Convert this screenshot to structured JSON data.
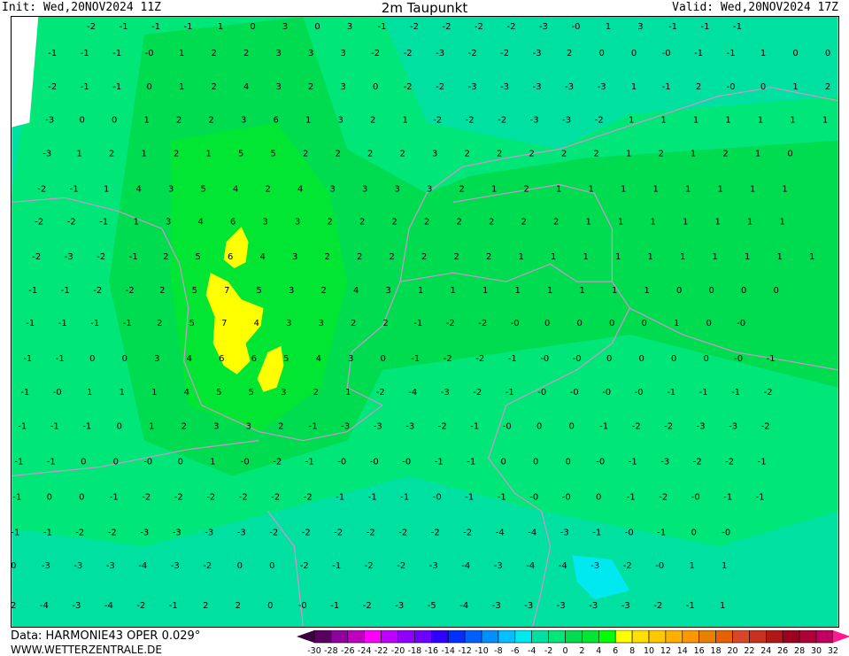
{
  "header": {
    "init": "Init: Wed,20NOV2024 11Z",
    "title": "2m Taupunkt",
    "valid": "Valid: Wed,20NOV2024 17Z"
  },
  "footer": {
    "data": "Data: HARMONIE43 OPER 0.029°",
    "site": "WWW.WETTERZENTRALE.DE"
  },
  "legend": {
    "labels": [
      "-30",
      "-28",
      "-26",
      "-24",
      "-22",
      "-20",
      "-18",
      "-16",
      "-14",
      "-12",
      "-10",
      "-8",
      "-6",
      "-4",
      "-2",
      "0",
      "2",
      "4",
      "6",
      "8",
      "10",
      "12",
      "14",
      "16",
      "18",
      "20",
      "22",
      "24",
      "26",
      "28",
      "30",
      "32"
    ],
    "low_color": "#3a0040",
    "high_color": "#ff1890",
    "colors": [
      "#5a0060",
      "#9000a0",
      "#c000c0",
      "#ff00ff",
      "#c000ff",
      "#9000ff",
      "#7000ff",
      "#3000ff",
      "#0030ff",
      "#0060ff",
      "#0090ff",
      "#00c0ff",
      "#00e8f0",
      "#00e0a0",
      "#00e678",
      "#00dc50",
      "#00e632",
      "#00ff00",
      "#ffff00",
      "#ffe000",
      "#ffc800",
      "#ffb000",
      "#ff9800",
      "#e88000",
      "#e86000",
      "#d84828",
      "#c83020",
      "#b01818",
      "#a00020",
      "#b00038",
      "#c00060"
    ]
  },
  "map": {
    "coast_color": "#c896c8",
    "rows": [
      [
        "-2",
        "-1",
        "-1",
        "-1",
        "1",
        "0",
        "3",
        "0",
        "3",
        "-1",
        "-2",
        "-2",
        "-2",
        "-2",
        "-3",
        "-0",
        "1",
        "3",
        "-1",
        "-1",
        "-1"
      ],
      [
        "-1",
        "-1",
        "-1",
        "-0",
        "1",
        "2",
        "2",
        "3",
        "3",
        "3",
        "-2",
        "-2",
        "-3",
        "-2",
        "-2",
        "-3",
        "2",
        "0",
        "0",
        "-0",
        "-1",
        "-1",
        "1",
        "0",
        "0"
      ],
      [
        "-2",
        "-1",
        "-1",
        "0",
        "1",
        "2",
        "4",
        "3",
        "2",
        "3",
        "0",
        "-2",
        "-2",
        "-3",
        "-3",
        "-3",
        "-3",
        "-3",
        "1",
        "-1",
        "2",
        "-0",
        "0",
        "1",
        "2"
      ],
      [
        "-3",
        "0",
        "0",
        "1",
        "2",
        "2",
        "3",
        "6",
        "1",
        "3",
        "2",
        "1",
        "-2",
        "-2",
        "-2",
        "-3",
        "-3",
        "-2",
        "1",
        "1",
        "1",
        "1",
        "1",
        "1",
        "1",
        "2"
      ],
      [
        "-3",
        "1",
        "2",
        "1",
        "2",
        "1",
        "5",
        "5",
        "2",
        "2",
        "2",
        "2",
        "3",
        "2",
        "2",
        "2",
        "2",
        "2",
        "1",
        "2",
        "1",
        "2",
        "1",
        "0"
      ],
      [
        "-2",
        "-1",
        "1",
        "4",
        "3",
        "5",
        "4",
        "2",
        "4",
        "3",
        "3",
        "3",
        "3",
        "2",
        "1",
        "2",
        "1",
        "1",
        "1",
        "1",
        "1",
        "1",
        "1",
        "1"
      ],
      [
        "-2",
        "-2",
        "-1",
        "1",
        "3",
        "4",
        "6",
        "3",
        "3",
        "2",
        "2",
        "2",
        "2",
        "2",
        "2",
        "2",
        "2",
        "1",
        "1",
        "1",
        "1",
        "1",
        "1",
        "1"
      ],
      [
        "-2",
        "-3",
        "-2",
        "-1",
        "2",
        "5",
        "6",
        "4",
        "3",
        "2",
        "2",
        "2",
        "2",
        "2",
        "2",
        "1",
        "1",
        "1",
        "1",
        "1",
        "1",
        "1",
        "1",
        "1",
        "1"
      ],
      [
        "-1",
        "-1",
        "-2",
        "-2",
        "2",
        "5",
        "7",
        "5",
        "3",
        "2",
        "4",
        "3",
        "1",
        "1",
        "1",
        "1",
        "1",
        "1",
        "1",
        "1",
        "0",
        "0",
        "0",
        "0"
      ],
      [
        "-1",
        "-1",
        "-1",
        "-1",
        "2",
        "5",
        "7",
        "4",
        "3",
        "3",
        "2",
        "2",
        "-1",
        "-2",
        "-2",
        "-0",
        "0",
        "0",
        "0",
        "0",
        "1",
        "0",
        "-0"
      ],
      [
        "-1",
        "-1",
        "0",
        "0",
        "3",
        "4",
        "6",
        "6",
        "5",
        "4",
        "3",
        "0",
        "-1",
        "-2",
        "-2",
        "-1",
        "-0",
        "-0",
        "0",
        "0",
        "0",
        "0",
        "-0",
        "-1"
      ],
      [
        "-1",
        "-0",
        "1",
        "1",
        "1",
        "4",
        "5",
        "5",
        "3",
        "2",
        "1",
        "-2",
        "-4",
        "-3",
        "-2",
        "-1",
        "-0",
        "-0",
        "-0",
        "-0",
        "-1",
        "-1",
        "-1",
        "-2"
      ],
      [
        "-1",
        "-1",
        "-1",
        "0",
        "1",
        "2",
        "3",
        "3",
        "2",
        "-1",
        "-3",
        "-3",
        "-3",
        "-2",
        "-1",
        "-0",
        "0",
        "0",
        "-1",
        "-2",
        "-2",
        "-3",
        "-3",
        "-2"
      ],
      [
        "-1",
        "-1",
        "0",
        "0",
        "-0",
        "0",
        "1",
        "-0",
        "-2",
        "-1",
        "-0",
        "-0",
        "-0",
        "-1",
        "-1",
        "0",
        "0",
        "0",
        "-0",
        "-1",
        "-3",
        "-2",
        "-2",
        "-1"
      ],
      [
        "-1",
        "0",
        "0",
        "-1",
        "-2",
        "-2",
        "-2",
        "-2",
        "-2",
        "-2",
        "-1",
        "-1",
        "-1",
        "-0",
        "-1",
        "-1",
        "-0",
        "-0",
        "0",
        "-1",
        "-2",
        "-0",
        "-1",
        "-1"
      ],
      [
        "-1",
        "-1",
        "-2",
        "-2",
        "-3",
        "-3",
        "-3",
        "-3",
        "-2",
        "-2",
        "-2",
        "-2",
        "-2",
        "-2",
        "-2",
        "-4",
        "-4",
        "-3",
        "-1",
        "-0",
        "-1",
        "0",
        "-0"
      ],
      [
        "0",
        "-3",
        "-3",
        "-3",
        "-4",
        "-3",
        "-2",
        "0",
        "0",
        "-2",
        "-1",
        "-2",
        "-2",
        "-3",
        "-4",
        "-3",
        "-4",
        "-4",
        "-3",
        "-2",
        "-0",
        "1",
        "1"
      ],
      [
        "-2",
        "-4",
        "-3",
        "-4",
        "-2",
        "-1",
        "2",
        "2",
        "0",
        "-0",
        "-1",
        "-2",
        "-3",
        "-5",
        "-4",
        "-3",
        "-3",
        "-3",
        "-3",
        "-3",
        "-2",
        "-1",
        "1"
      ]
    ]
  }
}
